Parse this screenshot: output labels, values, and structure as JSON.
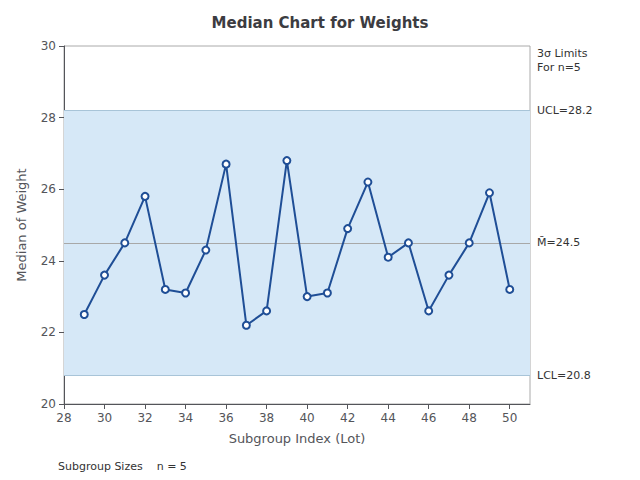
{
  "chart_data": {
    "type": "line",
    "title": "Median Chart for Weights",
    "xlabel": "Subgroup Index (Lot)",
    "ylabel": "Median of Weight",
    "x": [
      29,
      30,
      31,
      32,
      33,
      34,
      35,
      36,
      37,
      38,
      39,
      40,
      41,
      42,
      43,
      44,
      45,
      46,
      47,
      48,
      49,
      50
    ],
    "values": [
      22.5,
      23.6,
      24.5,
      25.8,
      23.2,
      23.1,
      24.3,
      26.7,
      22.2,
      22.6,
      26.8,
      23.0,
      23.1,
      24.9,
      26.2,
      24.1,
      24.5,
      22.6,
      23.6,
      24.5,
      25.9,
      23.2
    ],
    "color": "#1F4E96",
    "marker": "circle",
    "line_style": "solid",
    "xlim": [
      28,
      51
    ],
    "xticks": [
      28,
      30,
      32,
      34,
      36,
      38,
      40,
      42,
      44,
      46,
      48,
      50
    ],
    "ylim": [
      20.0,
      30.0
    ],
    "yticks": [
      20,
      22,
      24,
      26,
      28,
      30
    ],
    "grid": false,
    "band": {
      "lower": 20.8,
      "upper": 28.2,
      "color": "#D6E8F7"
    },
    "limits": [
      {
        "value": 28.2,
        "label": "UCL=28.2",
        "color": "#A8C4D8"
      },
      {
        "value": 20.8,
        "label": "LCL=20.8",
        "color": "#A8C4D8"
      },
      {
        "value": 24.5,
        "label": "M̄=24.5",
        "color": "#A8A8A8"
      }
    ],
    "annotations": [
      {
        "text": "3σ Limits\nFor n=5",
        "y": 30.0
      }
    ],
    "footnote": "Subgroup Sizes    n = 5"
  }
}
